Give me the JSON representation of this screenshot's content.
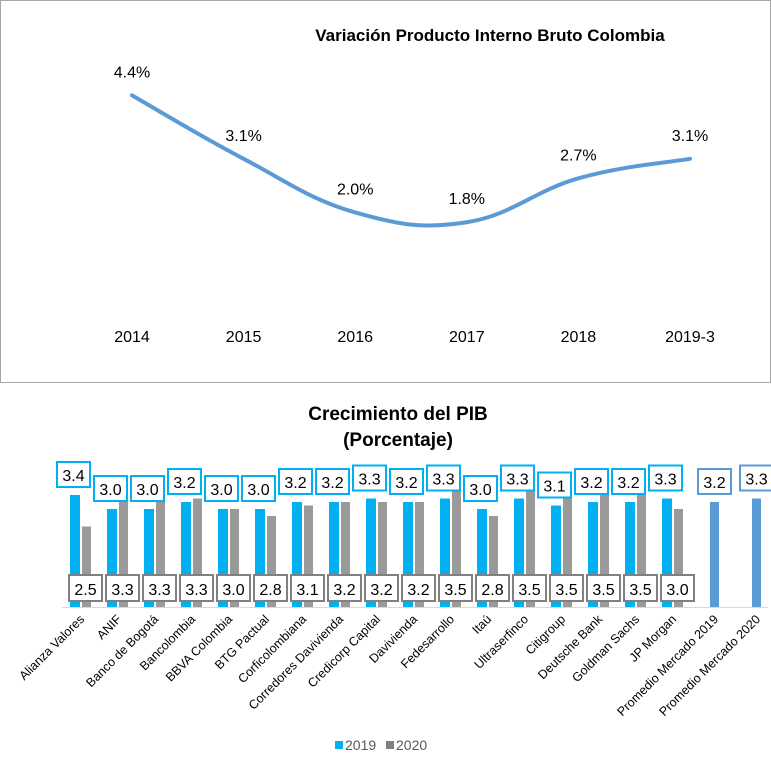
{
  "chart_data": [
    {
      "type": "line",
      "title": "Variación Producto Interno Bruto Colombia",
      "categories": [
        "2014",
        "2015",
        "2016",
        "2017",
        "2018",
        "2019-3"
      ],
      "values": [
        4.4,
        3.1,
        2.0,
        1.8,
        2.7,
        3.1
      ],
      "data_labels": [
        "4.4%",
        "3.1%",
        "2.0%",
        "1.8%",
        "2.7%",
        "3.1%"
      ],
      "ylim": [
        0,
        5.7
      ],
      "smooth": true,
      "grid": false,
      "color": "#5b9bd5"
    },
    {
      "type": "bar",
      "title": "Crecimiento del PIB",
      "subtitle": "(Porcentaje)",
      "categories": [
        "Alianza Valores",
        "ANIF",
        "Banco de Bogotá",
        "Bancolombia",
        "BBVA Colombia",
        "BTG Pactual",
        "Corficolombiana",
        "Corredores Davivienda",
        "Credicorp Capital",
        "Davivienda",
        "Fedesarrollo",
        "Itaú",
        "Ultraserfinco",
        "Citigroup",
        "Deutsche Bank",
        "Goldman Sachs",
        "JP Morgan",
        "Promedio Mercado 2019",
        "Promedio Mercado 2020"
      ],
      "series": [
        {
          "name": "2019",
          "values": [
            3.4,
            3.0,
            3.0,
            3.2,
            3.0,
            3.0,
            3.2,
            3.2,
            3.3,
            3.2,
            3.3,
            3.0,
            3.3,
            3.1,
            3.2,
            3.2,
            3.3,
            3.2,
            null
          ],
          "color": "#00b0f0"
        },
        {
          "name": "2020",
          "values": [
            2.5,
            3.3,
            3.3,
            3.3,
            3.0,
            2.8,
            3.1,
            3.2,
            3.2,
            3.2,
            3.5,
            2.8,
            3.5,
            3.5,
            3.5,
            3.5,
            3.0,
            null,
            3.3
          ],
          "color": "#808080"
        }
      ],
      "average_color": "#5b9bd5",
      "ylim": [
        0.2,
        4.2
      ],
      "grid": false,
      "legend": "bottom"
    }
  ]
}
